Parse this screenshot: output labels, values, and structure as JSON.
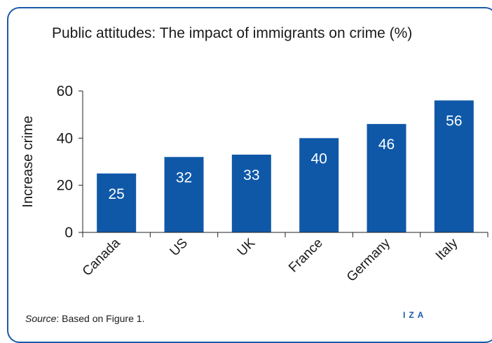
{
  "title": "Public attitudes: The impact of immigrants on crime (%)",
  "source": {
    "label": "Source",
    "text": ": Based on Figure 1."
  },
  "logo": "IZA",
  "colors": {
    "bar": "#0f58a8",
    "accent": "#1a5aa8",
    "axis": "#222222",
    "label_text": "#ffffff"
  },
  "chart_data": {
    "type": "bar",
    "categories": [
      "Canada",
      "US",
      "UK",
      "France",
      "Germany",
      "Italy"
    ],
    "values": [
      25,
      32,
      33,
      40,
      46,
      56
    ],
    "data_labels": [
      "25",
      "32",
      "33",
      "40",
      "46",
      "56"
    ],
    "title": "Public attitudes: The impact of immigrants on crime (%)",
    "xlabel": "",
    "ylabel": "Increase crime",
    "ylim": [
      0,
      60
    ],
    "yticks": [
      0,
      20,
      40,
      60
    ],
    "grid": false,
    "legend": "none"
  }
}
